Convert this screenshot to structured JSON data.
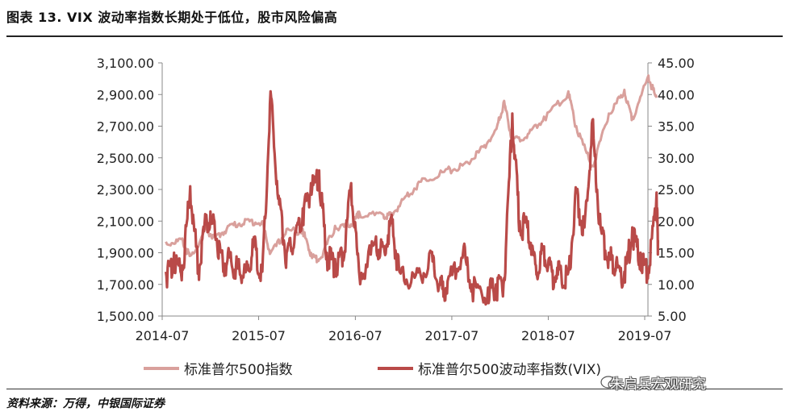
{
  "figure": {
    "title": "图表 13. VIX 波动率指数长期处于低位，股市风险偏高",
    "source": "资料来源：万得，中银国际证券",
    "watermark": "朱启兵宏观研究"
  },
  "chart_data": {
    "type": "line",
    "x_ticks": [
      "2014-07",
      "2015-07",
      "2016-07",
      "2017-07",
      "2018-07",
      "2019-07"
    ],
    "y_left": {
      "min": 1500,
      "max": 3100,
      "ticks": [
        "1,500.00",
        "1,700.00",
        "1,900.00",
        "2,100.00",
        "2,300.00",
        "2,500.00",
        "2,700.00",
        "2,900.00",
        "3,100.00"
      ]
    },
    "y_right": {
      "min": 5,
      "max": 45,
      "ticks": [
        "5.00",
        "10.00",
        "15.00",
        "20.00",
        "25.00",
        "30.00",
        "35.00",
        "40.00",
        "45.00"
      ]
    },
    "grid": false,
    "legend_position": "bottom",
    "series": [
      {
        "name": "标准普尔500指数",
        "axis": "left",
        "color": "#d9a09c",
        "points": [
          [
            "2014-07",
            1970
          ],
          [
            "2014-09",
            1990
          ],
          [
            "2014-10",
            1880
          ],
          [
            "2014-12",
            2060
          ],
          [
            "2015-01",
            2000
          ],
          [
            "2015-03",
            2080
          ],
          [
            "2015-05",
            2110
          ],
          [
            "2015-07",
            2100
          ],
          [
            "2015-08",
            1900
          ],
          [
            "2015-10",
            2050
          ],
          [
            "2015-12",
            2050
          ],
          [
            "2016-01",
            1900
          ],
          [
            "2016-02",
            1860
          ],
          [
            "2016-04",
            2070
          ],
          [
            "2016-06",
            2080
          ],
          [
            "2016-07",
            2160
          ],
          [
            "2016-10",
            2140
          ],
          [
            "2016-11",
            2150
          ],
          [
            "2017-01",
            2280
          ],
          [
            "2017-03",
            2370
          ],
          [
            "2017-06",
            2430
          ],
          [
            "2017-08",
            2460
          ],
          [
            "2017-10",
            2550
          ],
          [
            "2017-12",
            2680
          ],
          [
            "2018-01",
            2860
          ],
          [
            "2018-02",
            2620
          ],
          [
            "2018-04",
            2650
          ],
          [
            "2018-06",
            2760
          ],
          [
            "2018-09",
            2920
          ],
          [
            "2018-10",
            2700
          ],
          [
            "2018-12",
            2450
          ],
          [
            "2019-02",
            2780
          ],
          [
            "2019-04",
            2930
          ],
          [
            "2019-05",
            2760
          ],
          [
            "2019-07",
            3020
          ],
          [
            "2019-08",
            2880
          ]
        ]
      },
      {
        "name": "标准普尔500波动率指数(VIX)",
        "axis": "right",
        "color": "#b94a48",
        "points": [
          [
            "2014-07",
            12
          ],
          [
            "2014-08",
            15
          ],
          [
            "2014-09",
            13
          ],
          [
            "2014-10",
            25.5
          ],
          [
            "2014-11",
            13
          ],
          [
            "2014-12",
            21
          ],
          [
            "2015-01",
            20
          ],
          [
            "2015-02",
            14
          ],
          [
            "2015-03",
            15
          ],
          [
            "2015-04",
            13
          ],
          [
            "2015-05",
            12.5
          ],
          [
            "2015-06",
            17
          ],
          [
            "2015-07",
            12
          ],
          [
            "2015-08",
            40.5
          ],
          [
            "2015-09",
            24
          ],
          [
            "2015-10",
            15
          ],
          [
            "2015-11",
            18
          ],
          [
            "2015-12",
            22
          ],
          [
            "2016-01",
            26
          ],
          [
            "2016-02",
            28
          ],
          [
            "2016-03",
            15
          ],
          [
            "2016-04",
            14
          ],
          [
            "2016-05",
            15
          ],
          [
            "2016-06",
            26
          ],
          [
            "2016-07",
            12
          ],
          [
            "2016-09",
            17
          ],
          [
            "2016-10",
            16
          ],
          [
            "2016-11",
            21
          ],
          [
            "2016-12",
            12
          ],
          [
            "2017-02",
            11.5
          ],
          [
            "2017-04",
            15
          ],
          [
            "2017-05",
            10
          ],
          [
            "2017-06",
            10.5
          ],
          [
            "2017-08",
            16
          ],
          [
            "2017-09",
            10
          ],
          [
            "2017-11",
            9.5
          ],
          [
            "2017-12",
            10
          ],
          [
            "2018-01",
            11
          ],
          [
            "2018-02",
            37
          ],
          [
            "2018-03",
            20
          ],
          [
            "2018-04",
            20
          ],
          [
            "2018-05",
            13
          ],
          [
            "2018-06",
            16
          ],
          [
            "2018-07",
            12
          ],
          [
            "2018-08",
            12.5
          ],
          [
            "2018-09",
            12
          ],
          [
            "2018-10",
            25
          ],
          [
            "2018-11",
            19
          ],
          [
            "2018-12",
            36
          ],
          [
            "2019-01",
            19
          ],
          [
            "2019-02",
            15
          ],
          [
            "2019-03",
            13.5
          ],
          [
            "2019-04",
            12
          ],
          [
            "2019-05",
            19
          ],
          [
            "2019-06",
            15
          ],
          [
            "2019-07",
            12.5
          ],
          [
            "2019-08",
            24.5
          ],
          [
            "2019-08-20",
            17
          ]
        ]
      }
    ]
  }
}
